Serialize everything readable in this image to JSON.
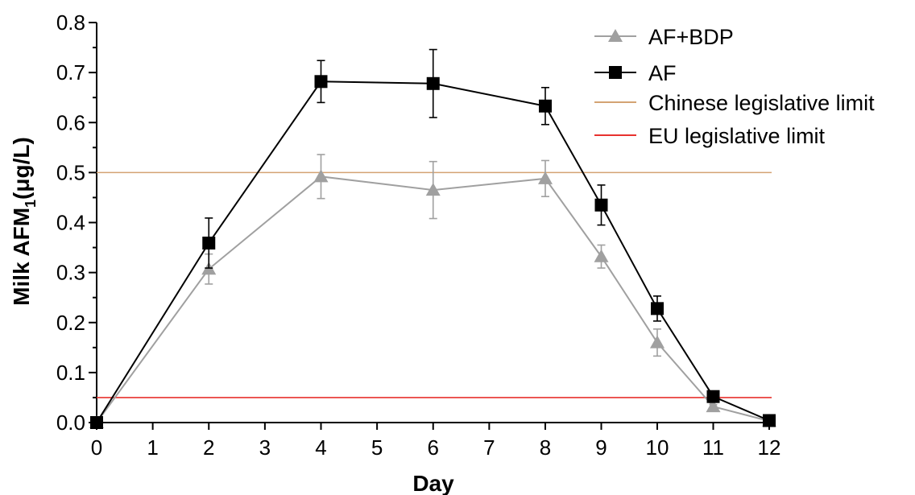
{
  "chart_data": {
    "type": "line",
    "xlabel": "Day",
    "ylabel": {
      "main": "Milk AFM",
      "sub": "1",
      "unit": "(μg/L)"
    },
    "x_ticks": [
      "0",
      "1",
      "2",
      "3",
      "4",
      "5",
      "6",
      "7",
      "8",
      "9",
      "10",
      "11",
      "12"
    ],
    "x_tick_values": [
      0,
      1,
      2,
      3,
      4,
      5,
      6,
      7,
      8,
      9,
      10,
      11,
      12
    ],
    "y_ticks": [
      "0.0",
      "0.1",
      "0.2",
      "0.3",
      "0.4",
      "0.5",
      "0.6",
      "0.7",
      "0.8"
    ],
    "y_tick_values": [
      0,
      0.1,
      0.2,
      0.3,
      0.4,
      0.5,
      0.6,
      0.7,
      0.8
    ],
    "ylim": [
      0,
      0.8
    ],
    "x_scale": "piecewise: days 0-8 compressed, days 8-12 expanded",
    "grid": false,
    "legend_position": "top-right",
    "series": [
      {
        "name": "AF+BDP",
        "color": "#a0a0a0",
        "marker": "triangle",
        "x": [
          0,
          2,
          4,
          6,
          8,
          9,
          10,
          11,
          12
        ],
        "y": [
          0.0,
          0.307,
          0.492,
          0.465,
          0.488,
          0.332,
          0.16,
          0.032,
          0.003
        ],
        "err": [
          0,
          0.03,
          0.044,
          0.057,
          0.036,
          0.023,
          0.027,
          0.004,
          0.002
        ]
      },
      {
        "name": "AF",
        "color": "#000000",
        "marker": "square",
        "x": [
          0,
          2,
          4,
          6,
          8,
          9,
          10,
          11,
          12
        ],
        "y": [
          0.0,
          0.359,
          0.682,
          0.678,
          0.633,
          0.435,
          0.228,
          0.052,
          0.004
        ],
        "err": [
          0,
          0.05,
          0.042,
          0.068,
          0.037,
          0.04,
          0.025,
          0.004,
          0.002
        ]
      }
    ],
    "reference_lines": [
      {
        "name": "Chinese legislative limit",
        "y": 0.5,
        "color": "#d4a373"
      },
      {
        "name": "EU legislative limit",
        "y": 0.05,
        "color": "#e8322e"
      }
    ]
  }
}
